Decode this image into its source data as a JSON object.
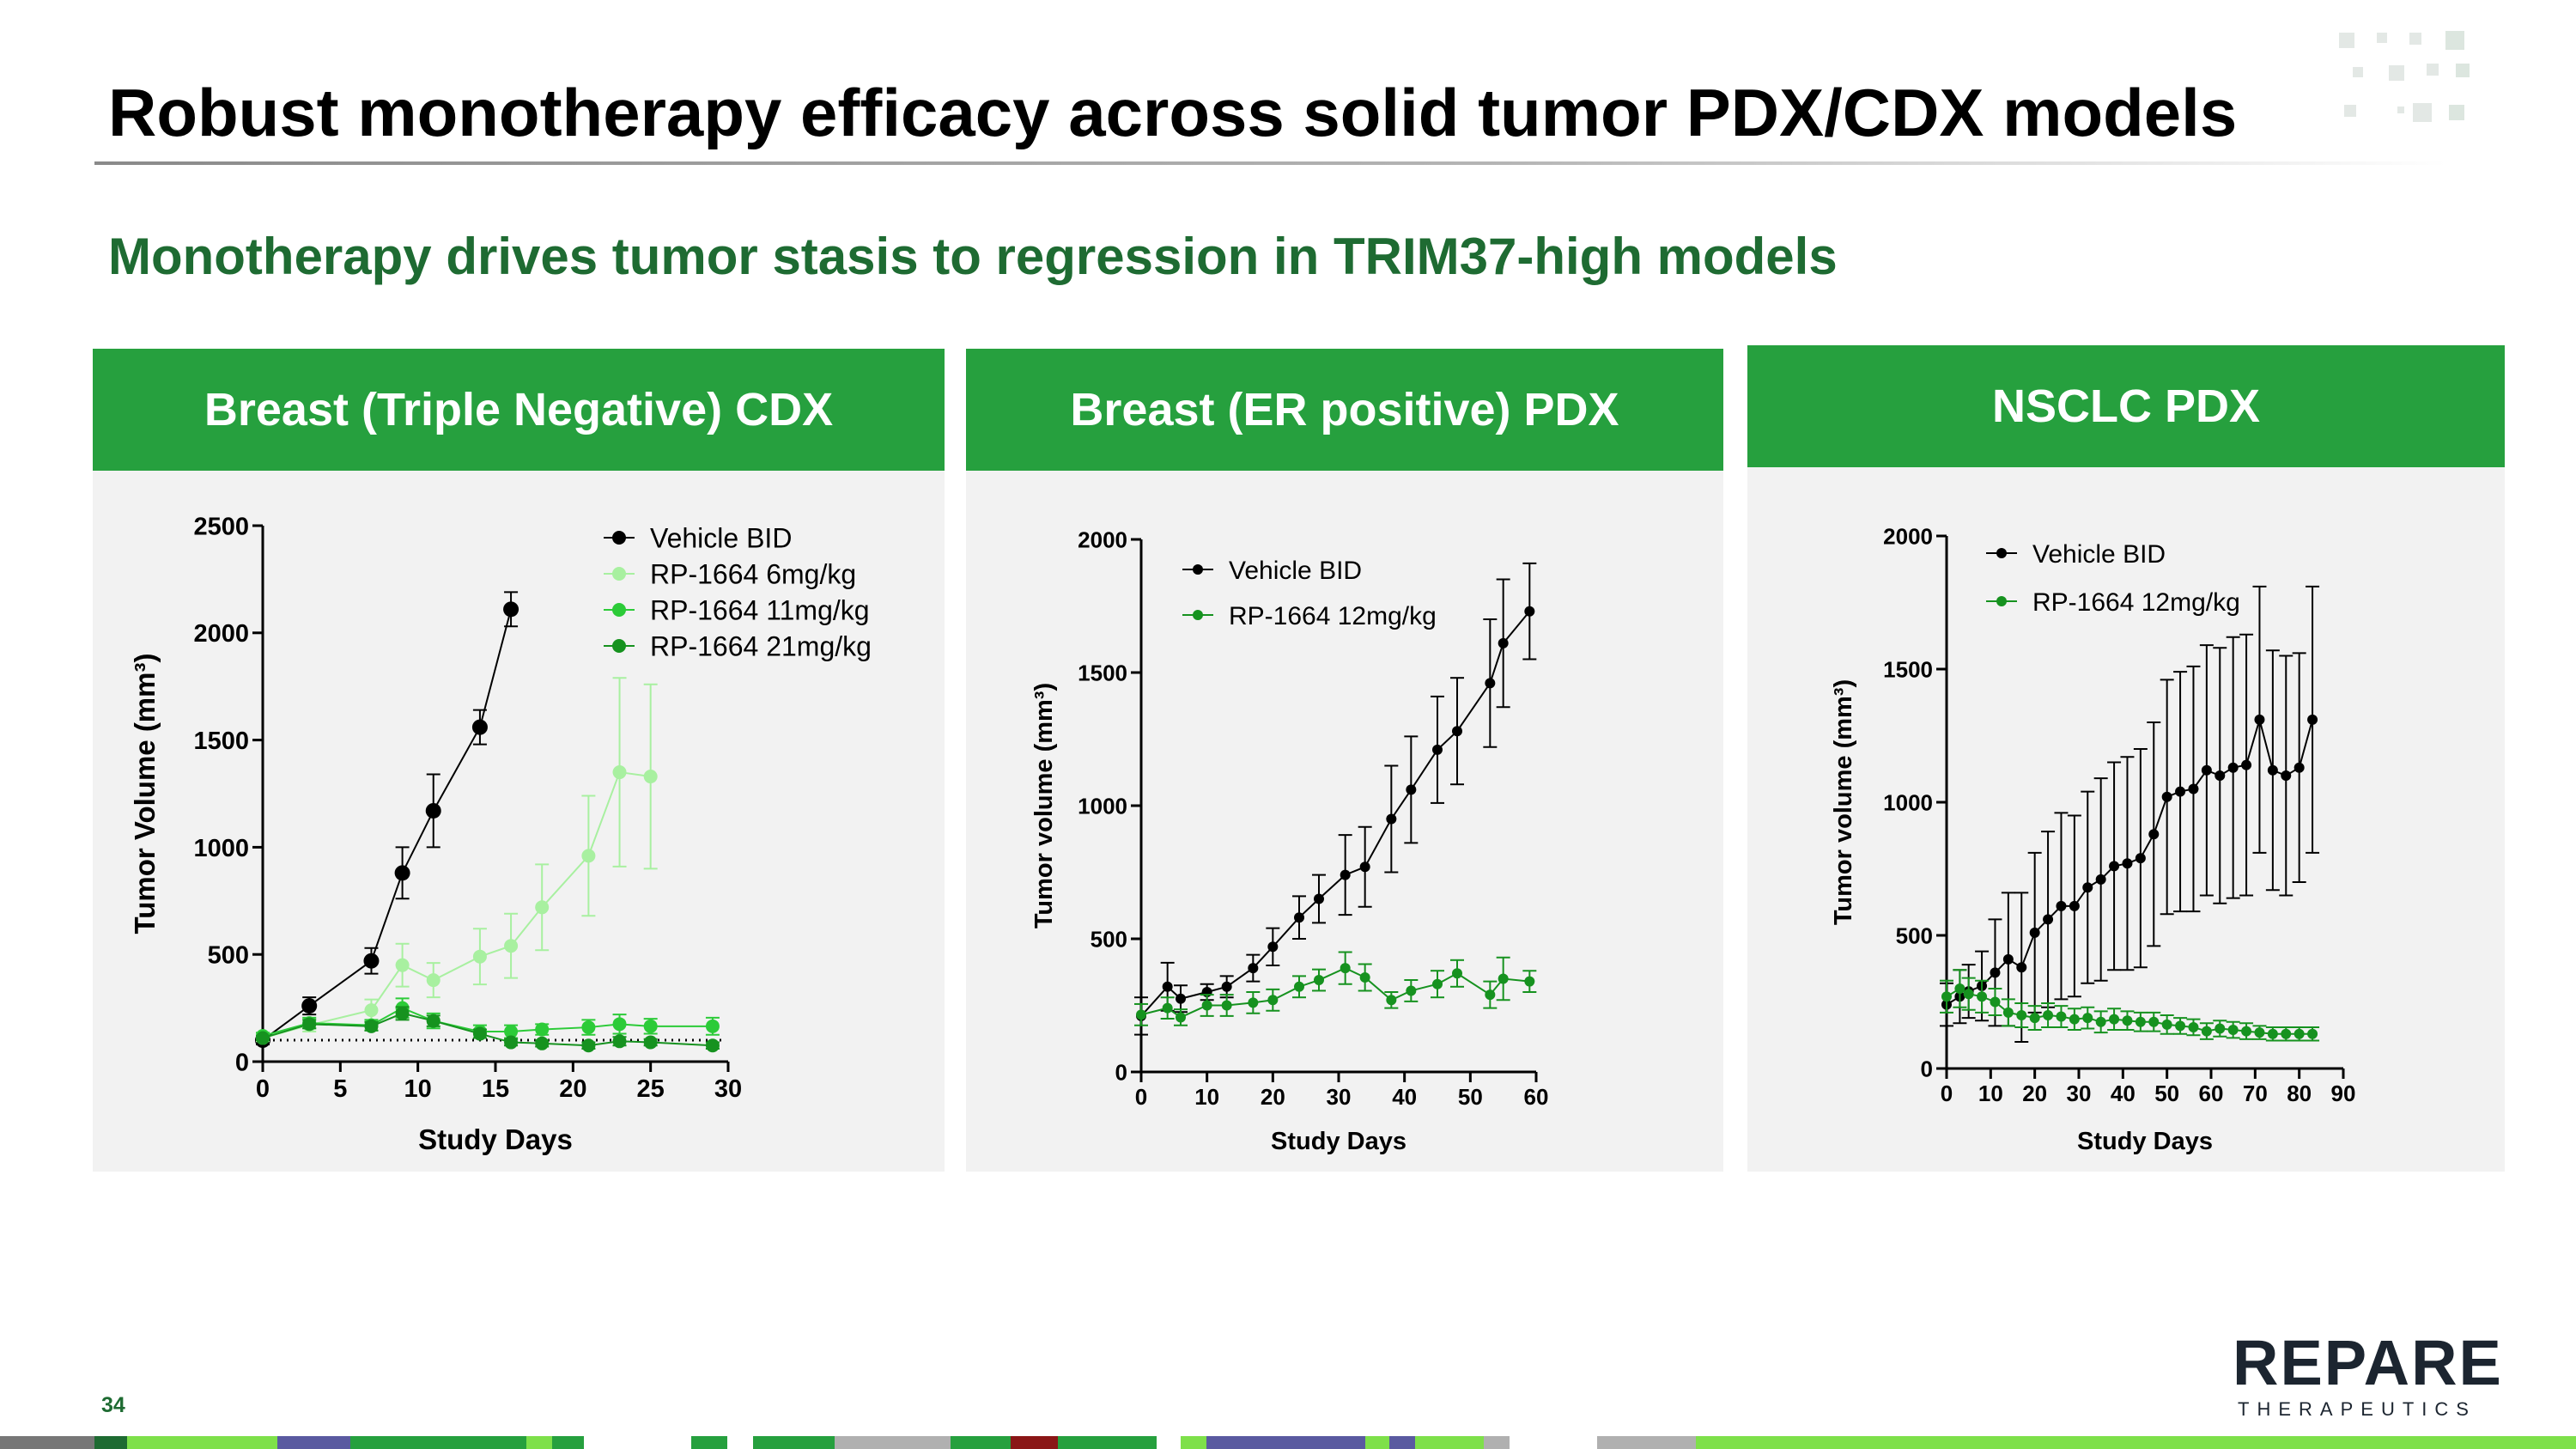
{
  "slide": {
    "title": "Robust monotherapy efficacy across solid tumor PDX/CDX models",
    "subtitle": "Monotherapy drives tumor stasis to regression in TRIM37-high models",
    "page_number": "34",
    "logo_text": "REPARE",
    "logo_subtext": "THERAPEUTICS",
    "colors": {
      "accent_green": "#26a03e",
      "dark_green": "#1e6b32",
      "panel_bg": "#f2f2f2"
    }
  },
  "panels": [
    {
      "header": "Breast (Triple Negative) CDX"
    },
    {
      "header": "Breast (ER positive) PDX"
    },
    {
      "header": "NSCLC PDX"
    }
  ],
  "chart_data": [
    {
      "type": "line",
      "title": "Breast (Triple Negative) CDX",
      "xlabel": "Study Days",
      "ylabel": "Tumor Volume (mm³)",
      "xlim": [
        0,
        30
      ],
      "ylim": [
        0,
        2500
      ],
      "xticks": [
        0,
        5,
        10,
        15,
        20,
        25,
        30
      ],
      "yticks": [
        0,
        500,
        1000,
        1500,
        2000,
        2500
      ],
      "legend_position": "top-right",
      "reference_line": {
        "style": "dotted",
        "y": 100
      },
      "series": [
        {
          "name": "Vehicle BID",
          "color": "#000000",
          "marker": 9,
          "line": 2,
          "x": [
            0,
            3,
            7,
            9,
            11,
            14,
            16
          ],
          "y": [
            100,
            260,
            470,
            880,
            1170,
            1560,
            2110
          ],
          "err": [
            20,
            40,
            60,
            120,
            170,
            80,
            80
          ]
        },
        {
          "name": "RP-1664 6mg/kg",
          "color": "#a8f0a0",
          "marker": 8,
          "line": 2,
          "x": [
            0,
            3,
            7,
            9,
            11,
            14,
            16,
            18,
            21,
            23,
            25
          ],
          "y": [
            110,
            170,
            240,
            450,
            380,
            490,
            540,
            720,
            960,
            1350,
            1330
          ],
          "err": [
            15,
            30,
            50,
            100,
            80,
            130,
            150,
            200,
            280,
            440,
            430
          ]
        },
        {
          "name": "RP-1664 11mg/kg",
          "color": "#2ccb38",
          "marker": 8,
          "line": 2,
          "x": [
            0,
            3,
            7,
            9,
            11,
            14,
            16,
            18,
            21,
            23,
            25,
            29
          ],
          "y": [
            120,
            180,
            170,
            250,
            190,
            140,
            140,
            150,
            160,
            175,
            165,
            165
          ],
          "err": [
            15,
            25,
            25,
            45,
            35,
            30,
            30,
            25,
            35,
            45,
            35,
            40
          ]
        },
        {
          "name": "RP-1664 21mg/kg",
          "color": "#16921f",
          "marker": 8,
          "line": 2,
          "x": [
            0,
            3,
            7,
            9,
            11,
            14,
            16,
            18,
            21,
            23,
            25,
            29
          ],
          "y": [
            110,
            175,
            165,
            225,
            190,
            130,
            90,
            85,
            75,
            95,
            90,
            75
          ],
          "err": [
            10,
            20,
            20,
            30,
            25,
            20,
            15,
            15,
            15,
            20,
            15,
            15
          ]
        }
      ]
    },
    {
      "type": "line",
      "title": "Breast (ER positive) PDX",
      "xlabel": "Study Days",
      "ylabel": "Tumor volume (mm³)",
      "xlim": [
        0,
        60
      ],
      "ylim": [
        0,
        2000
      ],
      "xticks": [
        0,
        10,
        20,
        30,
        40,
        50,
        60
      ],
      "yticks": [
        0,
        500,
        1000,
        1500,
        2000
      ],
      "legend_position": "top-left",
      "series": [
        {
          "name": "Vehicle BID",
          "color": "#000000",
          "marker": 6,
          "line": 2,
          "x": [
            0,
            4,
            6,
            10,
            13,
            17,
            20,
            24,
            27,
            31,
            34,
            38,
            41,
            45,
            48,
            53,
            55,
            59
          ],
          "y": [
            210,
            320,
            275,
            300,
            320,
            390,
            470,
            580,
            650,
            740,
            770,
            950,
            1060,
            1210,
            1280,
            1460,
            1610,
            1730
          ],
          "err": [
            70,
            90,
            50,
            30,
            40,
            50,
            70,
            80,
            90,
            150,
            150,
            200,
            200,
            200,
            200,
            240,
            240,
            180
          ]
        },
        {
          "name": "RP-1664 12mg/kg",
          "color": "#16921f",
          "marker": 6,
          "line": 2,
          "x": [
            0,
            4,
            6,
            10,
            13,
            17,
            20,
            24,
            27,
            31,
            34,
            38,
            41,
            45,
            48,
            53,
            55,
            59
          ],
          "y": [
            215,
            240,
            205,
            250,
            250,
            260,
            270,
            320,
            345,
            390,
            355,
            270,
            305,
            330,
            370,
            290,
            350,
            340
          ],
          "err": [
            40,
            40,
            30,
            40,
            40,
            40,
            40,
            40,
            40,
            60,
            50,
            30,
            40,
            50,
            50,
            50,
            80,
            40
          ]
        }
      ]
    },
    {
      "type": "line",
      "title": "NSCLC PDX",
      "xlabel": "Study Days",
      "ylabel": "Tumor volume (mm³)",
      "xlim": [
        0,
        90
      ],
      "ylim": [
        0,
        2000
      ],
      "xticks": [
        0,
        10,
        20,
        30,
        40,
        50,
        60,
        70,
        80,
        90
      ],
      "yticks": [
        0,
        500,
        1000,
        1500,
        2000
      ],
      "legend_position": "top-left",
      "series": [
        {
          "name": "Vehicle BID",
          "color": "#000000",
          "marker": 6,
          "line": 2,
          "x": [
            0,
            3,
            5,
            8,
            11,
            14,
            17,
            20,
            23,
            26,
            29,
            32,
            35,
            38,
            41,
            44,
            47,
            50,
            53,
            56,
            59,
            62,
            65,
            68,
            71,
            74,
            77,
            80,
            83
          ],
          "y": [
            240,
            270,
            290,
            310,
            360,
            410,
            380,
            510,
            560,
            610,
            610,
            680,
            710,
            760,
            770,
            790,
            880,
            1020,
            1040,
            1050,
            1120,
            1100,
            1130,
            1140,
            1310,
            1120,
            1100,
            1130,
            1310
          ],
          "err": [
            80,
            100,
            100,
            130,
            200,
            250,
            280,
            300,
            330,
            350,
            340,
            360,
            380,
            390,
            400,
            410,
            420,
            440,
            450,
            460,
            470,
            480,
            490,
            490,
            500,
            450,
            450,
            430,
            500
          ]
        },
        {
          "name": "RP-1664 12mg/kg",
          "color": "#16921f",
          "marker": 6,
          "line": 2,
          "x": [
            0,
            3,
            5,
            8,
            11,
            14,
            17,
            20,
            23,
            26,
            29,
            32,
            35,
            38,
            41,
            44,
            47,
            50,
            53,
            56,
            59,
            62,
            65,
            68,
            71,
            74,
            77,
            80,
            83
          ],
          "y": [
            270,
            300,
            280,
            270,
            250,
            210,
            200,
            190,
            200,
            195,
            185,
            190,
            175,
            185,
            180,
            175,
            175,
            165,
            160,
            155,
            140,
            150,
            145,
            140,
            135,
            130,
            130,
            130,
            130
          ],
          "err": [
            60,
            70,
            60,
            60,
            50,
            50,
            45,
            45,
            45,
            40,
            40,
            40,
            40,
            40,
            35,
            35,
            35,
            35,
            30,
            30,
            30,
            30,
            30,
            30,
            25,
            25,
            25,
            25,
            25
          ]
        }
      ]
    }
  ]
}
